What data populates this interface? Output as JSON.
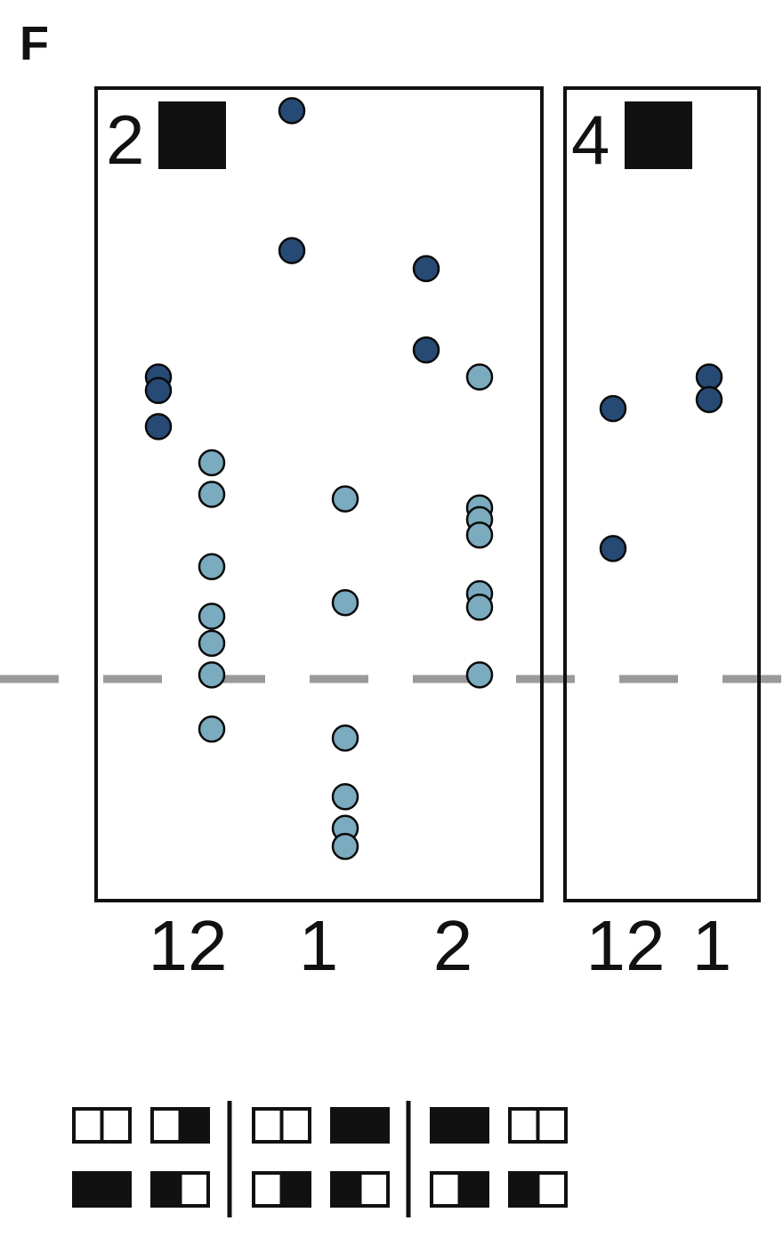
{
  "panel_label": "F",
  "colors": {
    "dark_point": "#264a74",
    "light_point": "#7aabbe",
    "point_stroke": "#0a0a0a",
    "reference_line": "#9a9a9a",
    "frame": "#111111",
    "filled_square": "#111111"
  },
  "chart_data": [
    {
      "type": "scatter",
      "panel_title": "2",
      "title_marker": "filled-black-square",
      "categories": [
        "12",
        "1",
        "2"
      ],
      "reference_line_y": 0,
      "ylim": [
        -2.5,
        6.5
      ],
      "series": [
        {
          "name": "dark",
          "points": [
            {
              "category": "12",
              "offset": -0.2,
              "y": 3.3
            },
            {
              "category": "12",
              "offset": -0.2,
              "y": 3.15
            },
            {
              "category": "12",
              "offset": -0.2,
              "y": 2.75
            },
            {
              "category": "1",
              "offset": -0.2,
              "y": 6.25
            },
            {
              "category": "1",
              "offset": -0.2,
              "y": 4.7
            },
            {
              "category": "2",
              "offset": -0.2,
              "y": 4.5
            },
            {
              "category": "2",
              "offset": -0.2,
              "y": 3.6
            }
          ]
        },
        {
          "name": "light",
          "points": [
            {
              "category": "12",
              "offset": 0.2,
              "y": 2.35
            },
            {
              "category": "12",
              "offset": 0.2,
              "y": 2.0
            },
            {
              "category": "12",
              "offset": 0.2,
              "y": 1.2
            },
            {
              "category": "12",
              "offset": 0.2,
              "y": 0.65
            },
            {
              "category": "12",
              "offset": 0.2,
              "y": 0.35
            },
            {
              "category": "12",
              "offset": 0.2,
              "y": 0.0
            },
            {
              "category": "12",
              "offset": 0.2,
              "y": -0.6
            },
            {
              "category": "1",
              "offset": 0.2,
              "y": 1.95
            },
            {
              "category": "1",
              "offset": 0.2,
              "y": 0.8
            },
            {
              "category": "1",
              "offset": 0.2,
              "y": -0.7
            },
            {
              "category": "1",
              "offset": 0.2,
              "y": -1.35
            },
            {
              "category": "1",
              "offset": 0.2,
              "y": -1.7
            },
            {
              "category": "1",
              "offset": 0.2,
              "y": -1.9
            },
            {
              "category": "2",
              "offset": 0.2,
              "y": 3.3
            },
            {
              "category": "2",
              "offset": 0.2,
              "y": 1.85
            },
            {
              "category": "2",
              "offset": 0.2,
              "y": 1.72
            },
            {
              "category": "2",
              "offset": 0.2,
              "y": 1.55
            },
            {
              "category": "2",
              "offset": 0.2,
              "y": 0.9
            },
            {
              "category": "2",
              "offset": 0.2,
              "y": 0.75
            },
            {
              "category": "2",
              "offset": 0.2,
              "y": 0.0
            }
          ]
        }
      ]
    },
    {
      "type": "scatter",
      "panel_title": "4",
      "title_marker": "filled-black-square",
      "categories": [
        "12",
        "1"
      ],
      "reference_line_y": 0,
      "ylim": [
        -2.5,
        6.5
      ],
      "series": [
        {
          "name": "dark",
          "points": [
            {
              "category": "12",
              "offset": 0,
              "y": 2.95
            },
            {
              "category": "12",
              "offset": 0,
              "y": 1.4
            },
            {
              "category": "1",
              "offset": 0,
              "y": 3.3
            },
            {
              "category": "1",
              "offset": 0,
              "y": 3.05
            }
          ]
        }
      ]
    }
  ],
  "pattern_legend": {
    "groups": [
      {
        "top": [
          "empty-empty",
          "empty-filled"
        ],
        "bottom": [
          "filled-filled",
          "filled-empty"
        ]
      },
      {
        "top": [
          "empty-empty",
          "filled-filled"
        ],
        "bottom": [
          "empty-filled",
          "filled-empty"
        ]
      },
      {
        "top": [
          "filled-filled",
          "empty-empty"
        ],
        "bottom": [
          "empty-filled",
          "filled-empty"
        ]
      }
    ]
  }
}
